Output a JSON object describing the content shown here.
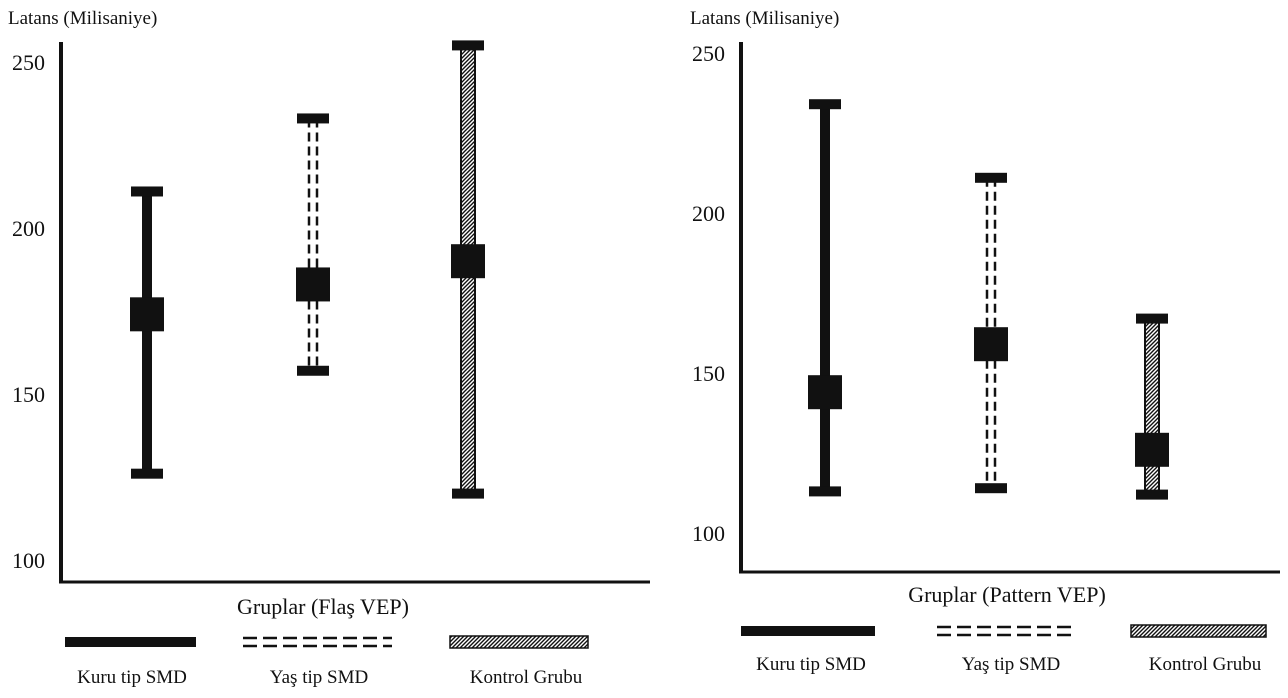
{
  "chart_data": [
    {
      "type": "errorbar",
      "ylabel": "Latans (Milisaniye)",
      "xlabel": "Gruplar (Flaş VEP)",
      "ylim": [
        100,
        250
      ],
      "yticks": [
        100,
        150,
        200,
        250
      ],
      "grid": false,
      "legend_position": "bottom",
      "series": [
        {
          "name": "Kuru tip SMD",
          "style": "solid",
          "mean": 174,
          "min": 126,
          "max": 211
        },
        {
          "name": "Yaş tip SMD",
          "style": "dashed",
          "mean": 183,
          "min": 157,
          "max": 233
        },
        {
          "name": "Kontrol Grubu",
          "style": "hatched",
          "mean": 190,
          "min": 120,
          "max": 255
        }
      ]
    },
    {
      "type": "errorbar",
      "ylabel": "Latans (Milisaniye)",
      "xlabel": "Gruplar (Pattern VEP)",
      "ylim": [
        100,
        250
      ],
      "yticks": [
        100,
        150,
        200,
        250
      ],
      "grid": false,
      "legend_position": "bottom",
      "series": [
        {
          "name": "Kuru tip SMD",
          "style": "solid",
          "mean": 144,
          "min": 113,
          "max": 234
        },
        {
          "name": "Yaş tip SMD",
          "style": "dashed",
          "mean": 159,
          "min": 114,
          "max": 211
        },
        {
          "name": "Kontrol Grubu",
          "style": "hatched",
          "mean": 126,
          "min": 112,
          "max": 167
        }
      ]
    }
  ]
}
